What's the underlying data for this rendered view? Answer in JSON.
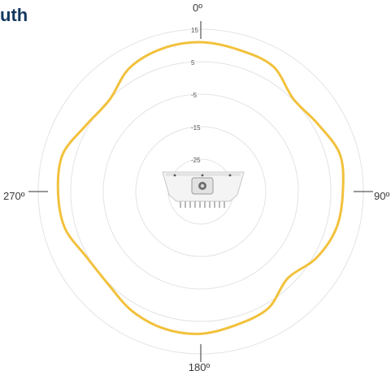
{
  "title_fragment": "uth",
  "colors": {
    "pattern": "#f2c13c",
    "grid": "#e3e3e3",
    "axis": "#333333",
    "title": "#14385e"
  },
  "device_icon": "access-point-device",
  "chart_data": {
    "type": "polar-line",
    "title": "uth",
    "angle_labels": [
      {
        "angle": 0,
        "text": "0º"
      },
      {
        "angle": 90,
        "text": "90º"
      },
      {
        "angle": 180,
        "text": "180º"
      },
      {
        "angle": 270,
        "text": "270º"
      }
    ],
    "radial_ticks": [
      15,
      5,
      -5,
      -15,
      -25
    ],
    "rlim": [
      -35,
      15
    ],
    "grid": true,
    "legend": "none",
    "series": [
      {
        "values": [
          {
            "angle": 0,
            "r": 11
          },
          {
            "angle": 15,
            "r": 10.2
          },
          {
            "angle": 30,
            "r": 9.5
          },
          {
            "angle": 45,
            "r": 5.3
          },
          {
            "angle": 60,
            "r": 6.6
          },
          {
            "angle": 75,
            "r": 9.3
          },
          {
            "angle": 90,
            "r": 8.7
          },
          {
            "angle": 105,
            "r": 8.2
          },
          {
            "angle": 120,
            "r": 6
          },
          {
            "angle": 135,
            "r": 2.8
          },
          {
            "angle": 150,
            "r": 6.5
          },
          {
            "angle": 165,
            "r": 7.5
          },
          {
            "angle": 180,
            "r": 8.8
          },
          {
            "angle": 195,
            "r": 8.7
          },
          {
            "angle": 210,
            "r": 7.4
          },
          {
            "angle": 225,
            "r": 5.3
          },
          {
            "angle": 240,
            "r": 5.5
          },
          {
            "angle": 255,
            "r": 8.3
          },
          {
            "angle": 270,
            "r": 8.9
          },
          {
            "angle": 285,
            "r": 9
          },
          {
            "angle": 300,
            "r": 5.8
          },
          {
            "angle": 315,
            "r": 4.8
          },
          {
            "angle": 330,
            "r": 8.9
          },
          {
            "angle": 345,
            "r": 10.6
          }
        ]
      }
    ]
  }
}
